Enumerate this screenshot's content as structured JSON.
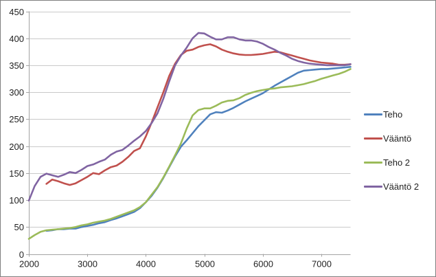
{
  "window": {
    "background": "#ffffff",
    "border_color": "#7f7f7f"
  },
  "chart_data": {
    "type": "line",
    "title": "",
    "xlabel": "",
    "ylabel": "",
    "grid": true,
    "legend_position": "right",
    "x_axis": {
      "min": 2000,
      "max": 7500,
      "ticks": [
        2000,
        3000,
        4000,
        5000,
        6000,
        7000
      ]
    },
    "y_axis": {
      "min": 0,
      "max": 450,
      "step": 50,
      "ticks": [
        0,
        50,
        100,
        150,
        200,
        250,
        300,
        350,
        400,
        450
      ]
    },
    "axis_color": "#a3a3a3",
    "gridline_color": "#c9c9c9",
    "tick_label_color": "#1f1f1f",
    "series": [
      {
        "name": "Teho",
        "color": "#4F81BD",
        "points": [
          [
            2300,
            43
          ],
          [
            2400,
            44
          ],
          [
            2500,
            46
          ],
          [
            2600,
            46
          ],
          [
            2700,
            47
          ],
          [
            2800,
            47
          ],
          [
            2900,
            50
          ],
          [
            3000,
            52
          ],
          [
            3100,
            54
          ],
          [
            3200,
            57
          ],
          [
            3300,
            59
          ],
          [
            3400,
            63
          ],
          [
            3500,
            66
          ],
          [
            3600,
            70
          ],
          [
            3700,
            74
          ],
          [
            3800,
            78
          ],
          [
            3900,
            85
          ],
          [
            4000,
            96
          ],
          [
            4100,
            108
          ],
          [
            4200,
            123
          ],
          [
            4300,
            141
          ],
          [
            4400,
            161
          ],
          [
            4500,
            181
          ],
          [
            4600,
            199
          ],
          [
            4700,
            211
          ],
          [
            4800,
            224
          ],
          [
            4900,
            237
          ],
          [
            5000,
            248
          ],
          [
            5100,
            259
          ],
          [
            5200,
            263
          ],
          [
            5300,
            262
          ],
          [
            5400,
            266
          ],
          [
            5500,
            271
          ],
          [
            5600,
            277
          ],
          [
            5700,
            283
          ],
          [
            5800,
            288
          ],
          [
            5900,
            293
          ],
          [
            6000,
            298
          ],
          [
            6100,
            305
          ],
          [
            6200,
            312
          ],
          [
            6300,
            318
          ],
          [
            6400,
            324
          ],
          [
            6500,
            330
          ],
          [
            6600,
            336
          ],
          [
            6700,
            340
          ],
          [
            6800,
            341
          ],
          [
            6900,
            342
          ],
          [
            7000,
            343
          ],
          [
            7100,
            343
          ],
          [
            7200,
            344
          ],
          [
            7300,
            345
          ],
          [
            7400,
            346
          ],
          [
            7500,
            347
          ]
        ]
      },
      {
        "name": "Vääntö",
        "color": "#C0504D",
        "points": [
          [
            2300,
            130
          ],
          [
            2400,
            138
          ],
          [
            2500,
            135
          ],
          [
            2600,
            131
          ],
          [
            2700,
            128
          ],
          [
            2800,
            131
          ],
          [
            2900,
            137
          ],
          [
            3000,
            143
          ],
          [
            3100,
            150
          ],
          [
            3200,
            148
          ],
          [
            3300,
            155
          ],
          [
            3400,
            161
          ],
          [
            3500,
            164
          ],
          [
            3600,
            171
          ],
          [
            3700,
            180
          ],
          [
            3800,
            191
          ],
          [
            3900,
            196
          ],
          [
            4000,
            218
          ],
          [
            4100,
            244
          ],
          [
            4200,
            272
          ],
          [
            4300,
            300
          ],
          [
            4400,
            330
          ],
          [
            4500,
            353
          ],
          [
            4600,
            369
          ],
          [
            4700,
            377
          ],
          [
            4800,
            379
          ],
          [
            4900,
            384
          ],
          [
            5000,
            387
          ],
          [
            5100,
            389
          ],
          [
            5200,
            385
          ],
          [
            5300,
            379
          ],
          [
            5400,
            375
          ],
          [
            5500,
            372
          ],
          [
            5600,
            370
          ],
          [
            5700,
            369
          ],
          [
            5800,
            369
          ],
          [
            5900,
            370
          ],
          [
            6000,
            371
          ],
          [
            6100,
            373
          ],
          [
            6200,
            375
          ],
          [
            6300,
            374
          ],
          [
            6400,
            371
          ],
          [
            6500,
            368
          ],
          [
            6600,
            365
          ],
          [
            6700,
            362
          ],
          [
            6800,
            359
          ],
          [
            6900,
            357
          ],
          [
            7000,
            355
          ],
          [
            7100,
            354
          ],
          [
            7200,
            353
          ],
          [
            7300,
            351
          ],
          [
            7400,
            351
          ],
          [
            7500,
            352
          ]
        ]
      },
      {
        "name": "Teho 2",
        "color": "#9BBB59",
        "points": [
          [
            2000,
            28
          ],
          [
            2100,
            35
          ],
          [
            2200,
            41
          ],
          [
            2300,
            44
          ],
          [
            2400,
            45
          ],
          [
            2500,
            46
          ],
          [
            2600,
            47
          ],
          [
            2700,
            48
          ],
          [
            2800,
            50
          ],
          [
            2900,
            53
          ],
          [
            3000,
            55
          ],
          [
            3100,
            58
          ],
          [
            3200,
            60
          ],
          [
            3300,
            62
          ],
          [
            3400,
            65
          ],
          [
            3500,
            69
          ],
          [
            3600,
            73
          ],
          [
            3700,
            77
          ],
          [
            3800,
            81
          ],
          [
            3900,
            87
          ],
          [
            4000,
            96
          ],
          [
            4100,
            110
          ],
          [
            4200,
            124
          ],
          [
            4300,
            142
          ],
          [
            4400,
            162
          ],
          [
            4500,
            183
          ],
          [
            4600,
            205
          ],
          [
            4700,
            233
          ],
          [
            4800,
            257
          ],
          [
            4900,
            267
          ],
          [
            5000,
            270
          ],
          [
            5100,
            270
          ],
          [
            5200,
            275
          ],
          [
            5300,
            281
          ],
          [
            5400,
            284
          ],
          [
            5500,
            285
          ],
          [
            5600,
            289
          ],
          [
            5700,
            295
          ],
          [
            5800,
            299
          ],
          [
            5900,
            302
          ],
          [
            6000,
            304
          ],
          [
            6100,
            306
          ],
          [
            6200,
            307
          ],
          [
            6300,
            309
          ],
          [
            6400,
            310
          ],
          [
            6500,
            311
          ],
          [
            6600,
            313
          ],
          [
            6700,
            315
          ],
          [
            6800,
            318
          ],
          [
            6900,
            321
          ],
          [
            7000,
            325
          ],
          [
            7100,
            328
          ],
          [
            7200,
            331
          ],
          [
            7300,
            334
          ],
          [
            7400,
            338
          ],
          [
            7500,
            343
          ]
        ]
      },
      {
        "name": "Vääntö 2",
        "color": "#8064A2",
        "points": [
          [
            2000,
            99
          ],
          [
            2100,
            126
          ],
          [
            2200,
            143
          ],
          [
            2300,
            149
          ],
          [
            2400,
            146
          ],
          [
            2500,
            143
          ],
          [
            2600,
            147
          ],
          [
            2700,
            152
          ],
          [
            2800,
            150
          ],
          [
            2900,
            156
          ],
          [
            3000,
            163
          ],
          [
            3100,
            166
          ],
          [
            3200,
            171
          ],
          [
            3300,
            175
          ],
          [
            3400,
            184
          ],
          [
            3500,
            190
          ],
          [
            3600,
            193
          ],
          [
            3700,
            201
          ],
          [
            3800,
            210
          ],
          [
            3900,
            218
          ],
          [
            4000,
            228
          ],
          [
            4100,
            243
          ],
          [
            4200,
            261
          ],
          [
            4300,
            288
          ],
          [
            4400,
            320
          ],
          [
            4500,
            350
          ],
          [
            4600,
            368
          ],
          [
            4700,
            383
          ],
          [
            4800,
            400
          ],
          [
            4900,
            410
          ],
          [
            5000,
            409
          ],
          [
            5100,
            403
          ],
          [
            5200,
            398
          ],
          [
            5300,
            398
          ],
          [
            5400,
            402
          ],
          [
            5500,
            402
          ],
          [
            5600,
            398
          ],
          [
            5700,
            396
          ],
          [
            5800,
            396
          ],
          [
            5900,
            394
          ],
          [
            6000,
            390
          ],
          [
            6100,
            384
          ],
          [
            6200,
            379
          ],
          [
            6300,
            373
          ],
          [
            6400,
            368
          ],
          [
            6500,
            362
          ],
          [
            6600,
            358
          ],
          [
            6700,
            355
          ],
          [
            6800,
            353
          ],
          [
            6900,
            352
          ],
          [
            7000,
            351
          ],
          [
            7100,
            350
          ],
          [
            7200,
            350
          ],
          [
            7300,
            350
          ],
          [
            7400,
            350
          ],
          [
            7500,
            352
          ]
        ]
      }
    ]
  }
}
